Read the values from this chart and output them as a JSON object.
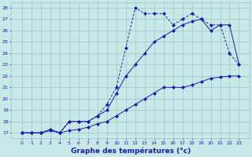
{
  "xlabel": "Graphe des températures (°c)",
  "hours": [
    0,
    1,
    2,
    3,
    4,
    5,
    6,
    7,
    8,
    9,
    10,
    11,
    12,
    13,
    14,
    15,
    16,
    17,
    18,
    19,
    20,
    21,
    22,
    23
  ],
  "line1": [
    17,
    17,
    17,
    17.2,
    17,
    17.2,
    17.3,
    17.5,
    17.8,
    18,
    18.5,
    19,
    19.5,
    20,
    20.5,
    21,
    21,
    21,
    21.2,
    21.5,
    21.8,
    21.9,
    22,
    22
  ],
  "line2": [
    17,
    17,
    17,
    17.3,
    17,
    18,
    18,
    18,
    18.5,
    19,
    20.5,
    22,
    23,
    24,
    25,
    25.5,
    26,
    26.5,
    26.8,
    27,
    26,
    26.5,
    26.5,
    23
  ],
  "line3": [
    17,
    17,
    17,
    17.3,
    17,
    18,
    18,
    18,
    18.5,
    19.5,
    21,
    24.5,
    28,
    27.5,
    27.5,
    27.5,
    26.5,
    27,
    27.5,
    27,
    26.5,
    26.5,
    24,
    23
  ],
  "line_color": "#1a1aaa",
  "bg_color": "#c8e8e8",
  "grid_color": "#a0c4c4",
  "ylim": [
    16.5,
    28.5
  ],
  "yticks": [
    17,
    18,
    19,
    20,
    21,
    22,
    23,
    24,
    25,
    26,
    27,
    28
  ],
  "xticks": [
    0,
    1,
    2,
    3,
    4,
    5,
    6,
    7,
    8,
    9,
    10,
    11,
    12,
    13,
    14,
    15,
    16,
    17,
    18,
    19,
    20,
    21,
    22,
    23
  ],
  "markersize": 2.5
}
